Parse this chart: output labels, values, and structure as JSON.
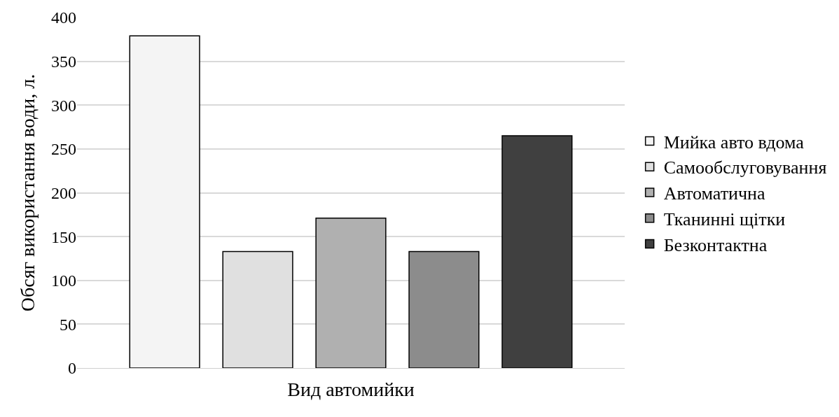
{
  "chart_data": {
    "type": "bar",
    "xlabel": "Вид автомийки",
    "ylabel": "Обсяг використання води, л.",
    "categories": [
      null
    ],
    "series": [
      {
        "name": "Мийка авто вдома",
        "color": "#f4f4f4",
        "values": [
          379
        ]
      },
      {
        "name": "Самообслуговування",
        "color": "#e0e0e0",
        "values": [
          133
        ]
      },
      {
        "name": "Автоматична",
        "color": "#b0b0b0",
        "values": [
          171
        ]
      },
      {
        "name": "Тканинні щітки",
        "color": "#8c8c8c",
        "values": [
          133
        ]
      },
      {
        "name": "Безконтактна",
        "color": "#404040",
        "values": [
          265
        ]
      }
    ],
    "ylim": [
      0,
      400
    ],
    "yticks": [
      0,
      50,
      100,
      150,
      200,
      250,
      300,
      350,
      400
    ],
    "grid": "y",
    "legend": "right"
  }
}
